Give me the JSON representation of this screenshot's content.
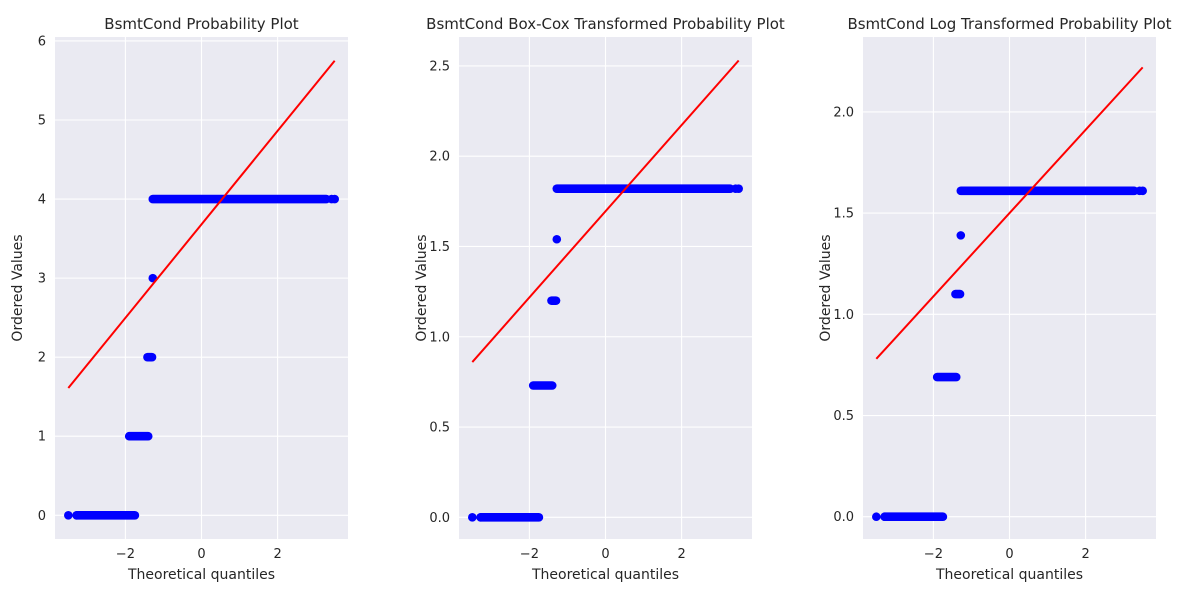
{
  "chart_data": [
    {
      "type": "scatter",
      "title": "BsmtCond Probability Plot",
      "xlabel": "Theoretical quantiles",
      "ylabel": "Ordered Values",
      "xlim": [
        -3.85,
        3.85
      ],
      "ylim": [
        -0.3,
        6.05
      ],
      "xticks": [
        -2,
        0,
        2
      ],
      "xtick_labels": [
        "−2",
        "0",
        "2"
      ],
      "yticks": [
        0,
        1,
        2,
        3,
        4,
        5,
        6
      ],
      "ytick_labels": [
        "0",
        "1",
        "2",
        "3",
        "4",
        "5",
        "6"
      ],
      "grid": true,
      "point_clusters": [
        {
          "x": [
            -3.5,
            -3.28
          ],
          "y": 0,
          "dense_x": [
            -3.28,
            -1.75
          ]
        },
        {
          "x": [],
          "y": 1,
          "dense_x": [
            -1.9,
            -1.4
          ]
        },
        {
          "x": [],
          "y": 2,
          "dense_x": [
            -1.42,
            -1.3
          ]
        },
        {
          "x": [
            -1.28
          ],
          "y": 3,
          "dense_x": null
        },
        {
          "x": [
            3.42,
            3.5
          ],
          "y": 4,
          "dense_x": [
            -1.28,
            3.28
          ]
        }
      ],
      "fit_line": {
        "x": [
          -3.5,
          3.5
        ],
        "y": [
          1.61,
          5.75
        ]
      }
    },
    {
      "type": "scatter",
      "title": "BsmtCond Box-Cox Transformed Probability Plot",
      "xlabel": "Theoretical quantiles",
      "ylabel": "Ordered Values",
      "xlim": [
        -3.85,
        3.85
      ],
      "ylim": [
        -0.12,
        2.66
      ],
      "xticks": [
        -2,
        0,
        2
      ],
      "xtick_labels": [
        "−2",
        "0",
        "2"
      ],
      "yticks": [
        0,
        0.5,
        1,
        1.5,
        2,
        2.5
      ],
      "ytick_labels": [
        "0.0",
        "0.5",
        "1.0",
        "1.5",
        "2.0",
        "2.5"
      ],
      "grid": true,
      "point_clusters": [
        {
          "x": [
            -3.5,
            -3.28
          ],
          "y": 0,
          "dense_x": [
            -3.28,
            -1.75
          ]
        },
        {
          "x": [],
          "y": 0.73,
          "dense_x": [
            -1.9,
            -1.4
          ]
        },
        {
          "x": [],
          "y": 1.2,
          "dense_x": [
            -1.42,
            -1.3
          ]
        },
        {
          "x": [
            -1.28
          ],
          "y": 1.54,
          "dense_x": null
        },
        {
          "x": [
            3.42,
            3.5
          ],
          "y": 1.82,
          "dense_x": [
            -1.28,
            3.28
          ]
        }
      ],
      "fit_line": {
        "x": [
          -3.5,
          3.5
        ],
        "y": [
          0.86,
          2.53
        ]
      }
    },
    {
      "type": "scatter",
      "title": "BsmtCond Log Transformed Probability Plot",
      "xlabel": "Theoretical quantiles",
      "ylabel": "Ordered Values",
      "xlim": [
        -3.85,
        3.85
      ],
      "ylim": [
        -0.11,
        2.37
      ],
      "xticks": [
        -2,
        0,
        2
      ],
      "xtick_labels": [
        "−2",
        "0",
        "2"
      ],
      "yticks": [
        0,
        0.5,
        1,
        1.5,
        2
      ],
      "ytick_labels": [
        "0.0",
        "0.5",
        "1.0",
        "1.5",
        "2.0"
      ],
      "grid": true,
      "point_clusters": [
        {
          "x": [
            -3.5,
            -3.28
          ],
          "y": 0,
          "dense_x": [
            -3.28,
            -1.75
          ]
        },
        {
          "x": [],
          "y": 0.69,
          "dense_x": [
            -1.9,
            -1.4
          ]
        },
        {
          "x": [],
          "y": 1.1,
          "dense_x": [
            -1.42,
            -1.3
          ]
        },
        {
          "x": [
            -1.28
          ],
          "y": 1.39,
          "dense_x": null
        },
        {
          "x": [
            3.42,
            3.5
          ],
          "y": 1.61,
          "dense_x": [
            -1.28,
            3.28
          ]
        }
      ],
      "fit_line": {
        "x": [
          -3.5,
          3.5
        ],
        "y": [
          0.78,
          2.22
        ]
      }
    }
  ],
  "colors": {
    "plot_background": "#eaeaf2",
    "grid": "#ffffff",
    "points": "#0000ff",
    "fit_line": "#ff0000",
    "text": "#262626"
  }
}
